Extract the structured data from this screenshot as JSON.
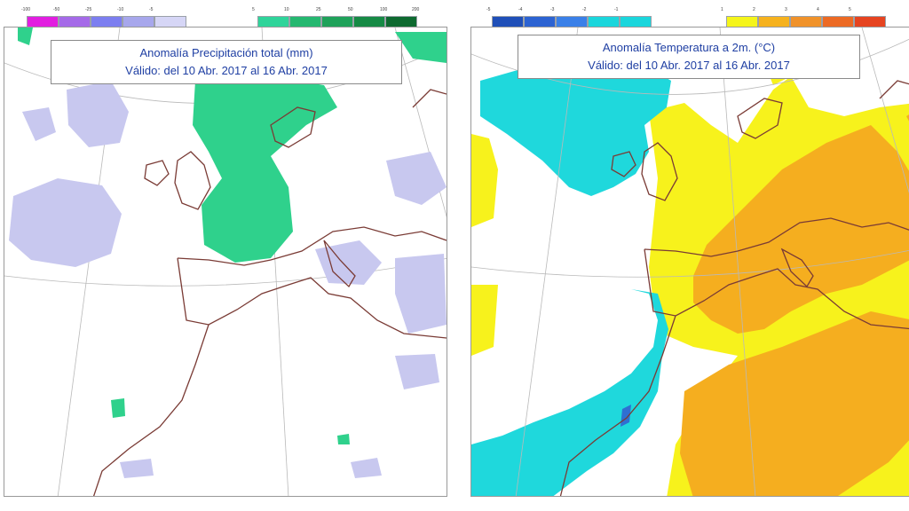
{
  "precipitation_panel": {
    "title": "Anomalía Precipitación total (mm)",
    "validity": "Válido: del 10 Abr. 2017 al 16 Abr. 2017",
    "legend_dry": {
      "labels": [
        "-100",
        "-50",
        "-25",
        "-10",
        "-5"
      ],
      "colors": [
        "#e21ee0",
        "#a56ae8",
        "#7c7ef0",
        "#a7a7ec",
        "#d6d6f6"
      ]
    },
    "legend_wet": {
      "labels": [
        "5",
        "10",
        "25",
        "50",
        "100"
      ],
      "colors": [
        "#2fd49a",
        "#25b870",
        "#1fa25a",
        "#168a45",
        "#0e6a30"
      ]
    },
    "legend_wet_top": "200",
    "colors": {
      "positive_fill": "#2fd18c",
      "negative_fill": "#c8c8ef",
      "coast": "#7a3b35",
      "graticule": "#b9b9b9"
    }
  },
  "temperature_panel": {
    "title": "Anomalía Temperatura a 2m. (°C)",
    "validity": "Válido: del 10 Abr. 2017 al 16 Abr. 2017",
    "legend_cold": {
      "labels": [
        "-5",
        "-4",
        "-3",
        "-2",
        "-1"
      ],
      "colors": [
        "#1f4fb8",
        "#2c63d2",
        "#3a80e8",
        "#1ad6dc",
        "#1ad6dc"
      ]
    },
    "legend_warm": {
      "labels": [
        "1",
        "2",
        "3",
        "4",
        "5"
      ],
      "colors": [
        "#f5f51a",
        "#f6b21e",
        "#f0922a",
        "#ec6a24",
        "#e64420"
      ]
    },
    "colors": {
      "cold_fill": "#1fd8dc",
      "cold_deep": "#2f6fd2",
      "warm_fill": "#f7f21c",
      "hot_fill": "#f5ae1f",
      "coast": "#7a3b35",
      "graticule": "#b9b9b9"
    }
  }
}
